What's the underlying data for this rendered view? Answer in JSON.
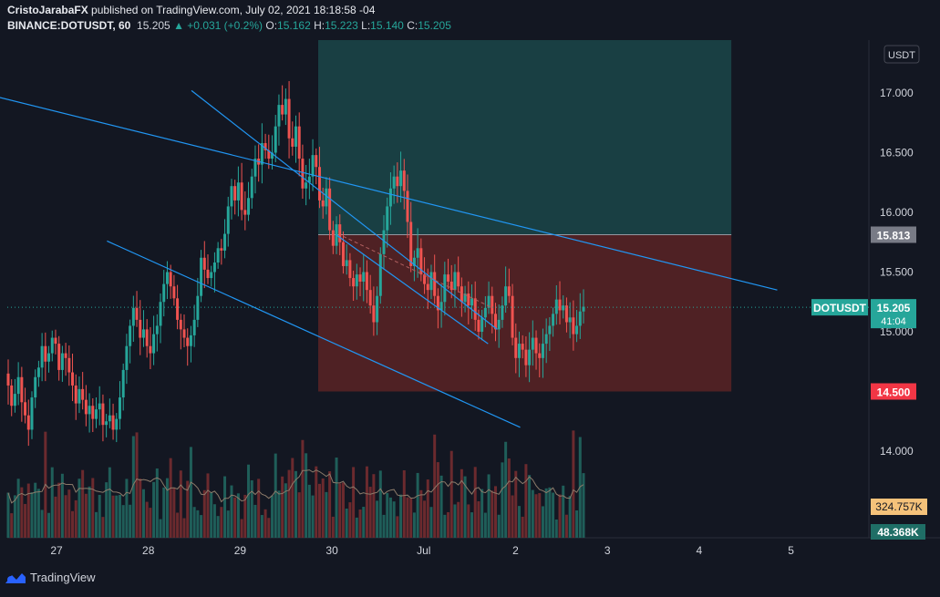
{
  "header": {
    "author": "CristoJarabaFX",
    "published_text": "published on TradingView.com, July 02, 2021 18:18:58 -04",
    "symbol": "BINANCE:DOTUSDT, 60",
    "last": "15.205",
    "change": "+0.031 (+0.2%)",
    "o_label": "O:",
    "o": "15.162",
    "h_label": "H:",
    "h": "15.223",
    "l_label": "L:",
    "l": "15.140",
    "c_label": "C:",
    "c": "15.205"
  },
  "footer": {
    "brand": "TradingView"
  },
  "colors": {
    "background": "#131722",
    "up": "#26a69a",
    "down": "#ef5350",
    "trendline": "#2196f3",
    "target_zone": "#1b4a4c",
    "stop_zone": "#5b2325"
  },
  "chart_data": {
    "type": "candlestick",
    "currency_label": "USDT",
    "y_ticks": [
      "17.000",
      "16.500",
      "16.000",
      "15.500",
      "15.000",
      "14.000"
    ],
    "x_ticks": [
      "27",
      "28",
      "29",
      "30",
      "Jul",
      "2",
      "3",
      "4",
      "5"
    ],
    "ylim": [
      13.35,
      17.45
    ],
    "price_labels": {
      "entry": {
        "text": "15.813",
        "value": 15.813
      },
      "stop": {
        "text": "14.500",
        "value": 14.5
      },
      "last": {
        "symbol": "DOTUSDT",
        "text": "15.205",
        "value": 15.205,
        "countdown": "41:04"
      }
    },
    "volume_labels": {
      "ma": "324.757K",
      "last": "48.368K"
    },
    "position_tool": {
      "start_day": 29.85,
      "end_day": 34.35,
      "entry": 15.813,
      "target": 17.45,
      "stop": 14.5
    },
    "trendlines": [
      {
        "x1": 25.92,
        "y1": 17.05,
        "x2": 34.85,
        "y2": 15.35
      },
      {
        "x1": 27.55,
        "y1": 15.76,
        "x2": 32.05,
        "y2": 14.2
      },
      {
        "x1": 28.47,
        "y1": 17.02,
        "x2": 31.8,
        "y2": 15.02
      },
      {
        "x1": 30.05,
        "y1": 15.81,
        "x2": 31.7,
        "y2": 14.9
      }
    ],
    "candles_close": [
      14.55,
      14.38,
      14.48,
      14.62,
      14.41,
      14.3,
      14.18,
      14.45,
      14.62,
      14.7,
      14.88,
      14.75,
      14.82,
      14.95,
      14.9,
      14.68,
      14.82,
      14.78,
      14.66,
      14.55,
      14.4,
      14.52,
      14.43,
      14.31,
      14.38,
      14.27,
      14.35,
      14.4,
      14.22,
      14.25,
      14.3,
      14.18,
      14.27,
      14.45,
      14.68,
      14.88,
      15.05,
      15.2,
      15.1,
      14.95,
      15.02,
      14.88,
      14.82,
      14.98,
      15.05,
      15.25,
      15.4,
      15.5,
      15.38,
      15.28,
      15.1,
      15.02,
      14.95,
      14.88,
      14.97,
      15.1,
      15.3,
      15.62,
      15.52,
      15.45,
      15.5,
      15.58,
      15.7,
      15.68,
      15.82,
      16.05,
      16.22,
      16.1,
      16.25,
      16.02,
      15.98,
      16.12,
      16.3,
      16.45,
      16.4,
      16.58,
      16.52,
      16.45,
      16.5,
      16.72,
      16.9,
      16.82,
      16.95,
      16.62,
      16.55,
      16.72,
      16.45,
      16.2,
      16.25,
      16.3,
      16.48,
      16.38,
      16.1,
      16.05,
      16.2,
      15.85,
      15.72,
      15.9,
      15.75,
      15.55,
      15.6,
      15.45,
      15.38,
      15.48,
      15.42,
      15.5,
      15.35,
      15.22,
      15.08,
      15.3,
      15.65,
      15.85,
      16.05,
      16.2,
      16.3,
      16.22,
      16.35,
      16.18,
      15.92,
      15.55,
      15.62,
      15.7,
      15.48,
      15.4,
      15.35,
      15.5,
      15.3,
      15.18,
      15.25,
      15.48,
      15.42,
      15.35,
      15.5,
      15.38,
      15.25,
      15.32,
      15.22,
      15.28,
      15.1,
      15.0,
      15.12,
      15.2,
      15.3,
      15.15,
      15.02,
      15.1,
      15.22,
      15.38,
      15.3,
      14.95,
      14.78,
      14.9,
      14.85,
      14.72,
      14.85,
      14.95,
      14.82,
      14.78,
      14.9,
      14.98,
      15.05,
      15.15,
      15.27,
      15.18,
      15.22,
      15.08,
      15.12,
      14.98,
      15.05,
      15.17,
      15.21
    ]
  }
}
